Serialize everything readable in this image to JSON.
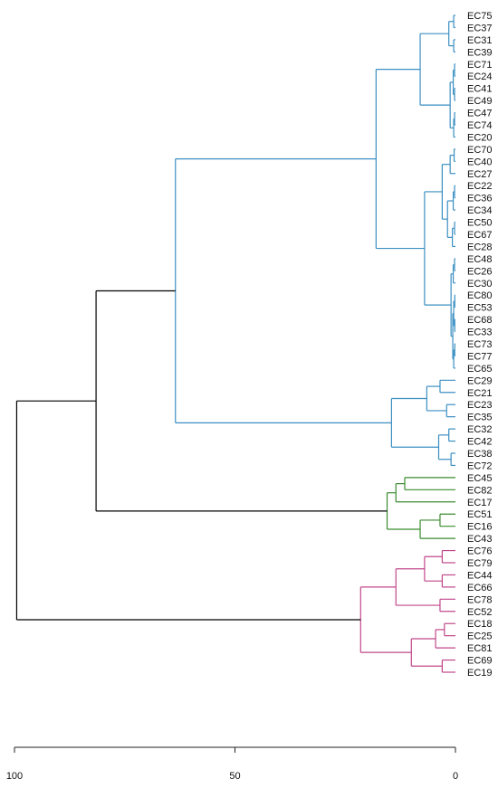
{
  "dendrogram": {
    "orientation": "horizontal",
    "leaf_side": "right",
    "leaves": [
      "EC75",
      "EC37",
      "EC31",
      "EC39",
      "EC71",
      "EC24",
      "EC41",
      "EC49",
      "EC47",
      "EC74",
      "EC20",
      "EC70",
      "EC40",
      "EC27",
      "EC22",
      "EC36",
      "EC34",
      "EC50",
      "EC67",
      "EC28",
      "EC48",
      "EC26",
      "EC30",
      "EC80",
      "EC53",
      "EC68",
      "EC33",
      "EC73",
      "EC77",
      "EC65",
      "EC29",
      "EC21",
      "EC23",
      "EC35",
      "EC32",
      "EC42",
      "EC38",
      "EC72",
      "EC45",
      "EC82",
      "EC17",
      "EC51",
      "EC16",
      "EC43",
      "EC76",
      "EC79",
      "EC44",
      "EC66",
      "EC78",
      "EC52",
      "EC18",
      "EC25",
      "EC81",
      "EC69",
      "EC19"
    ],
    "axis": {
      "ticks": [
        {
          "label": "100",
          "value": 100
        },
        {
          "label": "50",
          "value": 50
        },
        {
          "label": "0",
          "value": 0
        }
      ],
      "range": [
        0,
        100
      ]
    },
    "colors": {
      "cluster_blue": "#3b8fc2",
      "cluster_green": "#3a8c2f",
      "cluster_pink": "#c0478a",
      "root": "#000000"
    },
    "tree": {
      "h": 99.5,
      "color": "root",
      "children": [
        {
          "h": 81.5,
          "color": "root",
          "children": [
            {
              "h": 63.5,
              "color": "cluster_blue",
              "children": [
                {
                  "h": 18,
                  "color": "cluster_blue",
                  "children": [
                    {
                      "h": 8,
                      "color": "cluster_blue",
                      "children": [
                        {
                          "h": 1.5,
                          "color": "cluster_blue",
                          "children": [
                            {
                              "h": 0.4,
                              "color": "cluster_blue",
                              "children": [
                                {
                                  "leaf": "EC75"
                                },
                                {
                                  "leaf": "EC37"
                                }
                              ]
                            },
                            {
                              "h": 0.4,
                              "color": "cluster_blue",
                              "children": [
                                {
                                  "leaf": "EC31"
                                },
                                {
                                  "leaf": "EC39"
                                }
                              ]
                            }
                          ]
                        },
                        {
                          "h": 1.2,
                          "color": "cluster_blue",
                          "children": [
                            {
                              "h": 0.5,
                              "color": "cluster_blue",
                              "children": [
                                {
                                  "h": 0.2,
                                  "color": "cluster_blue",
                                  "children": [
                                    {
                                      "leaf": "EC71"
                                    },
                                    {
                                      "leaf": "EC24"
                                    }
                                  ]
                                },
                                {
                                  "h": 0.2,
                                  "color": "cluster_blue",
                                  "children": [
                                    {
                                      "leaf": "EC41"
                                    },
                                    {
                                      "leaf": "EC49"
                                    }
                                  ]
                                }
                              ]
                            },
                            {
                              "h": 0.4,
                              "color": "cluster_blue",
                              "children": [
                                {
                                  "h": 0.2,
                                  "color": "cluster_blue",
                                  "children": [
                                    {
                                      "leaf": "EC47"
                                    },
                                    {
                                      "leaf": "EC74"
                                    }
                                  ]
                                },
                                {
                                  "leaf": "EC20"
                                }
                              ]
                            }
                          ]
                        }
                      ]
                    },
                    {
                      "h": 7,
                      "color": "cluster_blue",
                      "children": [
                        {
                          "h": 3,
                          "color": "cluster_blue",
                          "children": [
                            {
                              "h": 1.2,
                              "color": "cluster_blue",
                              "children": [
                                {
                                  "h": 0.3,
                                  "color": "cluster_blue",
                                  "children": [
                                    {
                                      "leaf": "EC70"
                                    },
                                    {
                                      "leaf": "EC40"
                                    }
                                  ]
                                },
                                {
                                  "leaf": "EC27"
                                }
                              ]
                            },
                            {
                              "h": 1.8,
                              "color": "cluster_blue",
                              "children": [
                                {
                                  "h": 0.5,
                                  "color": "cluster_blue",
                                  "children": [
                                    {
                                      "h": 0.2,
                                      "color": "cluster_blue",
                                      "children": [
                                        {
                                          "leaf": "EC22"
                                        },
                                        {
                                          "leaf": "EC36"
                                        }
                                      ]
                                    },
                                    {
                                      "leaf": "EC34"
                                    }
                                  ]
                                },
                                {
                                  "h": 0.7,
                                  "color": "cluster_blue",
                                  "children": [
                                    {
                                      "h": 0.2,
                                      "color": "cluster_blue",
                                      "children": [
                                        {
                                          "leaf": "EC50"
                                        },
                                        {
                                          "leaf": "EC67"
                                        }
                                      ]
                                    },
                                    {
                                      "leaf": "EC28"
                                    }
                                  ]
                                }
                              ]
                            }
                          ]
                        },
                        {
                          "h": 1.0,
                          "color": "cluster_blue",
                          "children": [
                            {
                              "h": 0.5,
                              "color": "cluster_blue",
                              "children": [
                                {
                                  "h": 0.2,
                                  "color": "cluster_blue",
                                  "children": [
                                    {
                                      "leaf": "EC48"
                                    },
                                    {
                                      "leaf": "EC26"
                                    }
                                  ]
                                },
                                {
                                  "leaf": "EC30"
                                }
                              ]
                            },
                            {
                              "h": 0.6,
                              "color": "cluster_blue",
                              "children": [
                                {
                                  "h": 0.4,
                                  "color": "cluster_blue",
                                  "children": [
                                    {
                                      "h": 0.15,
                                      "color": "cluster_blue",
                                      "children": [
                                        {
                                          "leaf": "EC80"
                                        },
                                        {
                                          "leaf": "EC53"
                                        }
                                      ]
                                    },
                                    {
                                      "h": 0.15,
                                      "color": "cluster_blue",
                                      "children": [
                                        {
                                          "leaf": "EC68"
                                        },
                                        {
                                          "leaf": "EC33"
                                        }
                                      ]
                                    }
                                  ]
                                },
                                {
                                  "h": 0.4,
                                  "color": "cluster_blue",
                                  "children": [
                                    {
                                      "h": 0.15,
                                      "color": "cluster_blue",
                                      "children": [
                                        {
                                          "leaf": "EC73"
                                        },
                                        {
                                          "leaf": "EC77"
                                        }
                                      ]
                                    },
                                    {
                                      "leaf": "EC65"
                                    }
                                  ]
                                }
                              ]
                            }
                          ]
                        }
                      ]
                    }
                  ]
                },
                {
                  "h": 14.5,
                  "color": "cluster_blue",
                  "children": [
                    {
                      "h": 6.5,
                      "color": "cluster_blue",
                      "children": [
                        {
                          "h": 3.5,
                          "color": "cluster_blue",
                          "children": [
                            {
                              "leaf": "EC29"
                            },
                            {
                              "leaf": "EC21"
                            }
                          ]
                        },
                        {
                          "h": 2.0,
                          "color": "cluster_blue",
                          "children": [
                            {
                              "leaf": "EC23"
                            },
                            {
                              "leaf": "EC35"
                            }
                          ]
                        }
                      ]
                    },
                    {
                      "h": 3.8,
                      "color": "cluster_blue",
                      "children": [
                        {
                          "h": 1.5,
                          "color": "cluster_blue",
                          "children": [
                            {
                              "leaf": "EC32"
                            },
                            {
                              "leaf": "EC42"
                            }
                          ]
                        },
                        {
                          "h": 1.0,
                          "color": "cluster_blue",
                          "children": [
                            {
                              "leaf": "EC38"
                            },
                            {
                              "leaf": "EC72"
                            }
                          ]
                        }
                      ]
                    }
                  ]
                }
              ]
            },
            {
              "h": 15.5,
              "color": "cluster_green",
              "children": [
                {
                  "h": 13.5,
                  "color": "cluster_green",
                  "children": [
                    {
                      "h": 11.5,
                      "color": "cluster_green",
                      "children": [
                        {
                          "leaf": "EC45"
                        },
                        {
                          "leaf": "EC82"
                        }
                      ]
                    },
                    {
                      "leaf": "EC17"
                    }
                  ]
                },
                {
                  "h": 8,
                  "color": "cluster_green",
                  "children": [
                    {
                      "h": 3.5,
                      "color": "cluster_green",
                      "children": [
                        {
                          "leaf": "EC51"
                        },
                        {
                          "leaf": "EC16"
                        }
                      ]
                    },
                    {
                      "leaf": "EC43"
                    }
                  ]
                }
              ]
            }
          ]
        },
        {
          "h": 21.5,
          "color": "cluster_pink",
          "children": [
            {
              "h": 13.5,
              "color": "cluster_pink",
              "children": [
                {
                  "h": 7,
                  "color": "cluster_pink",
                  "children": [
                    {
                      "h": 3,
                      "color": "cluster_pink",
                      "children": [
                        {
                          "leaf": "EC76"
                        },
                        {
                          "leaf": "EC79"
                        }
                      ]
                    },
                    {
                      "h": 3,
                      "color": "cluster_pink",
                      "children": [
                        {
                          "leaf": "EC44"
                        },
                        {
                          "leaf": "EC66"
                        }
                      ]
                    }
                  ]
                },
                {
                  "h": 3.5,
                  "color": "cluster_pink",
                  "children": [
                    {
                      "leaf": "EC78"
                    },
                    {
                      "leaf": "EC52"
                    }
                  ]
                }
              ]
            },
            {
              "h": 10,
              "color": "cluster_pink",
              "children": [
                {
                  "h": 4.5,
                  "color": "cluster_pink",
                  "children": [
                    {
                      "h": 2.5,
                      "color": "cluster_pink",
                      "children": [
                        {
                          "leaf": "EC18"
                        },
                        {
                          "leaf": "EC25"
                        }
                      ]
                    },
                    {
                      "leaf": "EC81"
                    }
                  ]
                },
                {
                  "h": 3,
                  "color": "cluster_pink",
                  "children": [
                    {
                      "leaf": "EC69"
                    },
                    {
                      "leaf": "EC19"
                    }
                  ]
                }
              ]
            }
          ]
        }
      ]
    }
  }
}
